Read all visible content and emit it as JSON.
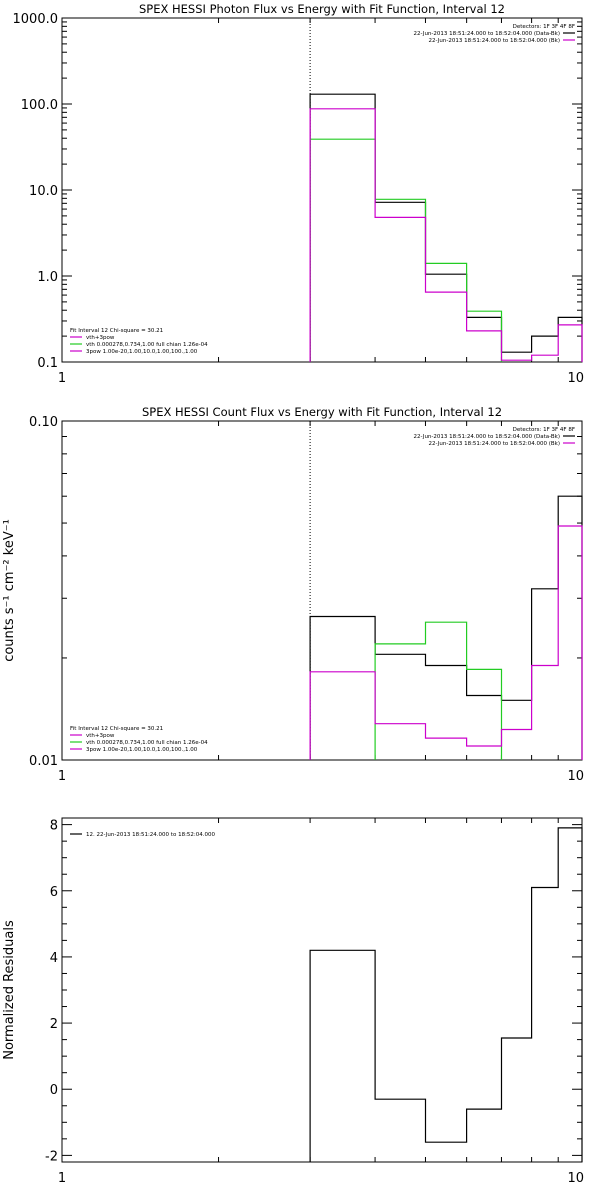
{
  "colors": {
    "black": "#000000",
    "magenta": "#cc00cc",
    "green": "#22cc22"
  },
  "chart_data": [
    {
      "type": "line",
      "title": "SPEX HESSI Photon Flux vs Energy with Fit Function, Interval 12",
      "xlabel": "",
      "ylabel": "",
      "xscale": "log",
      "yscale": "log",
      "xlim": [
        1,
        10
      ],
      "ylim": [
        0.1,
        1000
      ],
      "x_ticks": [
        "1",
        "10"
      ],
      "y_ticks": [
        "0.1",
        "1.0",
        "10.0",
        "100.0",
        "1000.0"
      ],
      "y_tick_values": [
        0.1,
        1,
        10,
        100,
        1000
      ],
      "vline_x": 3.0,
      "legend_tr": {
        "lines": [
          {
            "text": "Detectors: 1F 3F 4F 8F",
            "color": ""
          },
          {
            "text": "22-Jun-2013 18:51:24.000 to 18:52:04.000 (Data-Bk)",
            "color": "black"
          },
          {
            "text": "22-Jun-2013 18:51:24.000 to 18:52:04.000 (Bk)",
            "color": "magenta"
          }
        ]
      },
      "legend_bl": {
        "lines": [
          {
            "text": "Fit Interval 12   Chi-square = 30.21",
            "color": ""
          },
          {
            "text": "vth+3pow",
            "color": "magenta"
          },
          {
            "text": "vth 0.000278,0.734,1.00  full chian 1.26e-04",
            "color": "green"
          },
          {
            "text": "3pow 1.00e-20,1.00,10.0,1.00,100.,1.00",
            "color": "magenta"
          }
        ]
      },
      "series": [
        {
          "name": "22-Jun-2013 18:51:24.000 to 18:52:04.000 (Data-Bk)",
          "color": "black",
          "edges": [
            3.0,
            4.0,
            5.0,
            6.0,
            7.0,
            8.0,
            9.0,
            10.0
          ],
          "values": [
            130,
            7.2,
            1.05,
            0.33,
            0.13,
            0.2,
            0.33
          ]
        },
        {
          "name": "vth 0.000278,0.734,1.00  full chian 1.26e-04",
          "color": "green",
          "edges": [
            3.0,
            4.0,
            5.0,
            6.0,
            7.0
          ],
          "values": [
            39,
            7.8,
            1.4,
            0.39
          ]
        },
        {
          "name": "vth+3pow",
          "color": "magenta",
          "edges": [
            3.0,
            4.0,
            5.0,
            6.0,
            7.0,
            8.0,
            9.0,
            10.0
          ],
          "values": [
            88,
            4.8,
            0.65,
            0.23,
            0.105,
            0.12,
            0.27
          ]
        }
      ]
    },
    {
      "type": "line",
      "title": "SPEX HESSI Count Flux vs Energy with Fit Function, Interval 12",
      "xlabel": "",
      "ylabel": "counts s⁻¹ cm⁻² keV⁻¹",
      "xscale": "log",
      "yscale": "log",
      "xlim": [
        1,
        10
      ],
      "ylim": [
        0.01,
        0.1
      ],
      "x_ticks": [
        "1",
        "10"
      ],
      "y_ticks": [
        "0.01",
        "0.10"
      ],
      "y_tick_values": [
        0.01,
        0.1
      ],
      "vline_x": 3.0,
      "legend_tr": {
        "lines": [
          {
            "text": "Detectors: 1F 3F 4F 8F",
            "color": ""
          },
          {
            "text": "22-Jun-2013 18:51:24.000 to 18:52:04.000 (Data-Bk)",
            "color": "black"
          },
          {
            "text": "22-Jun-2013 18:51:24.000 to 18:52:04.000 (Bk)",
            "color": "magenta"
          }
        ]
      },
      "legend_bl": {
        "lines": [
          {
            "text": "Fit Interval 12   Chi-square = 30.21",
            "color": ""
          },
          {
            "text": "vth+3pow",
            "color": "magenta"
          },
          {
            "text": "vth 0.000278,0.734,1.00  full chian 1.26e-04",
            "color": "green"
          },
          {
            "text": "3pow 1.00e-20,1.00,10.0,1.00,100.,1.00",
            "color": "magenta"
          }
        ]
      },
      "series": [
        {
          "name": "22-Jun-2013 18:51:24.000 to 18:52:04.000 (Data-Bk)",
          "color": "black",
          "edges": [
            3.0,
            4.0,
            5.0,
            6.0,
            7.0,
            8.0,
            9.0,
            10.0
          ],
          "values": [
            0.0265,
            0.0205,
            0.019,
            0.0155,
            0.015,
            0.032,
            0.06
          ]
        },
        {
          "name": "vth 0.000278,0.734,1.00  full chian 1.26e-04",
          "color": "green",
          "edges": [
            4.0,
            5.0,
            6.0,
            7.0
          ],
          "values": [
            0.022,
            0.0255,
            0.0185
          ]
        },
        {
          "name": "vth+3pow",
          "color": "magenta",
          "edges": [
            3.0,
            4.0,
            5.0,
            6.0,
            7.0,
            8.0,
            9.0,
            10.0
          ],
          "values": [
            0.0182,
            0.0128,
            0.0116,
            0.011,
            0.0123,
            0.019,
            0.049
          ]
        }
      ]
    },
    {
      "type": "line",
      "title": "",
      "xlabel": "",
      "ylabel": "Normalized Residuals",
      "xscale": "log",
      "yscale": "linear",
      "xlim": [
        1,
        10
      ],
      "ylim": [
        -2.2,
        8.2
      ],
      "x_ticks": [
        "1",
        "10"
      ],
      "y_ticks": [
        "-2",
        "0",
        "2",
        "4",
        "6",
        "8"
      ],
      "y_tick_values": [
        -2,
        0,
        2,
        4,
        6,
        8
      ],
      "legend_tl": {
        "lines": [
          {
            "text": "12. 22-Jun-2013 18:51:24.000 to 18:52:04.000",
            "color": "black"
          }
        ]
      },
      "series": [
        {
          "name": "12. 22-Jun-2013 18:51:24.000 to 18:52:04.000",
          "color": "black",
          "edges": [
            3.0,
            4.0,
            5.0,
            6.0,
            7.0,
            8.0,
            9.0,
            10.0
          ],
          "values": [
            4.2,
            -0.3,
            -1.6,
            -0.6,
            1.55,
            6.1,
            7.9
          ]
        }
      ]
    }
  ]
}
